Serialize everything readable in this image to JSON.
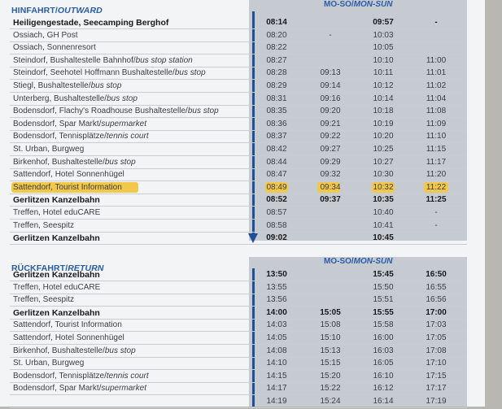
{
  "outward": {
    "title_main": "HINFAHRT/",
    "title_italic": "OUTWARD",
    "days_main": "MO-SO/",
    "days_italic": "MON-SUN",
    "rows": [
      {
        "name": "Heiligengestade, Seecamping Berghof",
        "bold": true,
        "times": [
          "08:14",
          "",
          "09:57",
          "-"
        ]
      },
      {
        "name": "Ossiach, GH Post",
        "times": [
          "08:20",
          "-",
          "10:03",
          ""
        ]
      },
      {
        "name": "Ossiach, Sonnenresort",
        "times": [
          "08:22",
          "",
          "10:05",
          ""
        ]
      },
      {
        "name": "Steindorf, Bushaltestelle Bahnhof/",
        "italic": "bus stop station",
        "times": [
          "08:27",
          "",
          "10:10",
          "11:00"
        ]
      },
      {
        "name": "Steindorf, Seehotel Hoffmann Bushaltestelle/",
        "italic": "bus stop",
        "times": [
          "08:28",
          "09:13",
          "10:11",
          "11:01"
        ]
      },
      {
        "name": "Stiegl, Bushaltestelle/",
        "italic": "bus stop",
        "times": [
          "08:29",
          "09:14",
          "10:12",
          "11:02"
        ]
      },
      {
        "name": "Unterberg, Bushaltestelle/",
        "italic": "bus stop",
        "times": [
          "08:31",
          "09:16",
          "10:14",
          "11:04"
        ]
      },
      {
        "name": "Bodensdorf, Flachy's Roadhouse Bushaltestelle/",
        "italic": "bus stop",
        "times": [
          "08:35",
          "09:20",
          "10:18",
          "11:08"
        ]
      },
      {
        "name": "Bodensdorf, Spar Markt/",
        "italic": "supermarket",
        "times": [
          "08:36",
          "09:21",
          "10:19",
          "11:09"
        ]
      },
      {
        "name": "Bodensdorf, Tennisplätze/",
        "italic": "tennis court",
        "times": [
          "08:37",
          "09:22",
          "10:20",
          "11:10"
        ]
      },
      {
        "name": "St. Urban, Burgweg",
        "times": [
          "08:42",
          "09:27",
          "10:25",
          "11:15"
        ]
      },
      {
        "name": "Birkenhof, Bushaltestelle/",
        "italic": "bus stop",
        "times": [
          "08:44",
          "09:29",
          "10:27",
          "11:17"
        ]
      },
      {
        "name": "Sattendorf, Hotel Sonnenhügel",
        "times": [
          "08:47",
          "09:32",
          "10:30",
          "11:20"
        ]
      },
      {
        "name": "Sattendorf, Tourist Information",
        "highlight": true,
        "times": [
          "08:49",
          "09:34",
          "10:32",
          "11:22"
        ]
      },
      {
        "name": "Gerlitzen Kanzelbahn",
        "bold": true,
        "times": [
          "08:52",
          "09:37",
          "10:35",
          "11:25"
        ]
      },
      {
        "name": "Treffen, Hotel eduCARE",
        "times": [
          "08:57",
          "",
          "10:40",
          "-"
        ]
      },
      {
        "name": "Treffen, Seespitz",
        "times": [
          "08:58",
          "",
          "10:41",
          "-"
        ]
      },
      {
        "name": "Gerlitzen Kanzelbahn",
        "bold": true,
        "times": [
          "09:02",
          "",
          "10:45",
          ""
        ]
      }
    ]
  },
  "return": {
    "title_main": "RÜCKFAHRT/",
    "title_italic": "RETURN",
    "days_main": "MO-SO/",
    "days_italic": "MON-SUN",
    "rows": [
      {
        "name": "Gerlitzen Kanzelbahn",
        "bold": true,
        "times": [
          "13:50",
          "",
          "15:45",
          "16:50"
        ],
        "bold_cols": [
          0,
          2,
          3
        ]
      },
      {
        "name": "Treffen, Hotel eduCARE",
        "times": [
          "13:55",
          "",
          "15:50",
          "16:55"
        ]
      },
      {
        "name": "Treffen, Seespitz",
        "times": [
          "13:56",
          "",
          "15:51",
          "16:56"
        ]
      },
      {
        "name": "Gerlitzen Kanzelbahn",
        "bold": true,
        "times": [
          "14:00",
          "15:05",
          "15:55",
          "17:00"
        ]
      },
      {
        "name": "Sattendorf, Tourist Information",
        "times": [
          "14:03",
          "15:08",
          "15:58",
          "17:03"
        ]
      },
      {
        "name": "Sattendorf, Hotel Sonnenhügel",
        "times": [
          "14:05",
          "15:10",
          "16:00",
          "17:05"
        ]
      },
      {
        "name": "Birkenhof, Bushaltestelle/",
        "italic": "bus stop",
        "times": [
          "14:08",
          "15:13",
          "16:03",
          "17:08"
        ]
      },
      {
        "name": "St. Urban, Burgweg",
        "times": [
          "14:10",
          "15:15",
          "16:05",
          "17:10"
        ]
      },
      {
        "name": "Bodensdorf, Tennisplätze/",
        "italic": "tennis court",
        "times": [
          "14:15",
          "15:20",
          "16:10",
          "17:15"
        ]
      },
      {
        "name": "Bodensdorf, Spar Markt/",
        "italic": "supermarket",
        "times": [
          "14:17",
          "15:22",
          "16:12",
          "17:17"
        ]
      },
      {
        "name": "",
        "times": [
          "14:19",
          "15:24",
          "16:14",
          "17:19"
        ]
      }
    ]
  },
  "colors": {
    "accent": "#2a5ca8",
    "highlight": "#f2c84b",
    "band": "#c6cbd2"
  }
}
